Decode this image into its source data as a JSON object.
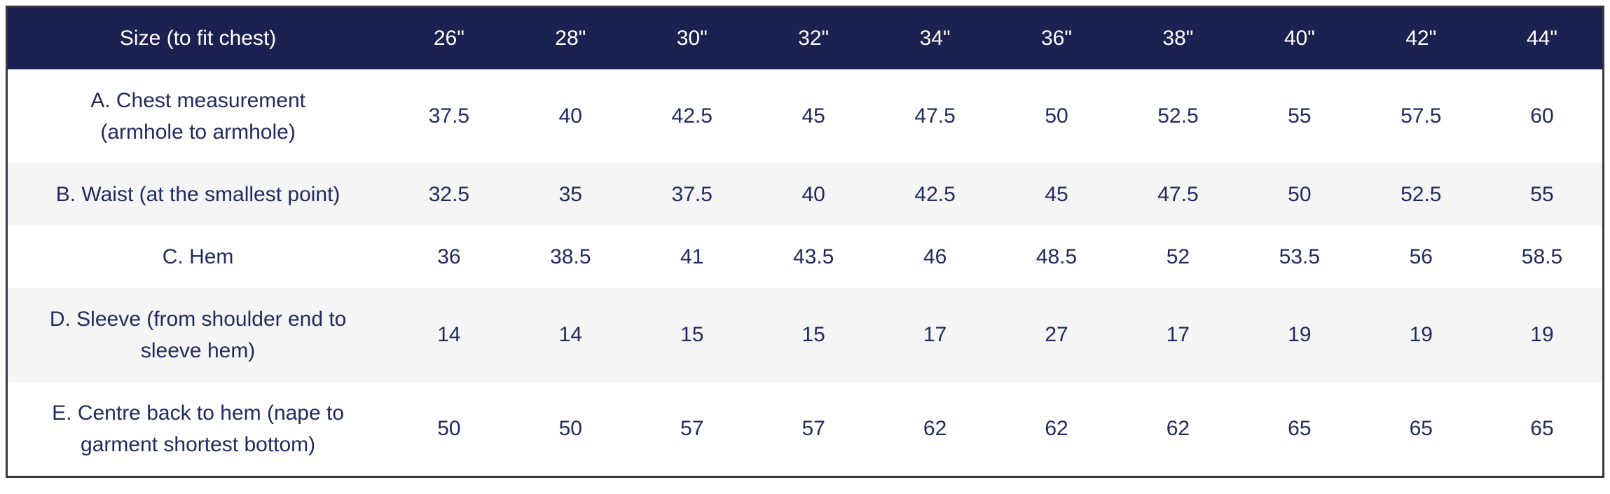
{
  "table": {
    "header": [
      "Size (to fit chest)",
      "26\"",
      "28\"",
      "30\"",
      "32\"",
      "34\"",
      "36\"",
      "38\"",
      "40\"",
      "42\"",
      "44\""
    ],
    "rows": [
      {
        "label": "A. Chest measurement\n(armhole to armhole)",
        "values": [
          "37.5",
          "40",
          "42.5",
          "45",
          "47.5",
          "50",
          "52.5",
          "55",
          "57.5",
          "60"
        ]
      },
      {
        "label": "B. Waist (at the smallest point)",
        "values": [
          "32.5",
          "35",
          "37.5",
          "40",
          "42.5",
          "45",
          "47.5",
          "50",
          "52.5",
          "55"
        ]
      },
      {
        "label": "C. Hem",
        "values": [
          "36",
          "38.5",
          "41",
          "43.5",
          "46",
          "48.5",
          "52",
          "53.5",
          "56",
          "58.5"
        ]
      },
      {
        "label": "D. Sleeve (from shoulder end to\nsleeve hem)",
        "values": [
          "14",
          "14",
          "15",
          "15",
          "17",
          "27",
          "17",
          "19",
          "19",
          "19"
        ]
      },
      {
        "label": "E. Centre back to hem (nape to\ngarment shortest bottom)",
        "values": [
          "50",
          "50",
          "57",
          "57",
          "62",
          "62",
          "62",
          "65",
          "65",
          "65"
        ]
      }
    ]
  },
  "colors": {
    "header_bg": "#1b2150",
    "header_text": "#ffffff",
    "body_text": "#232960",
    "stripe_row_bg": "#f5f5f6",
    "table_border": "#35363e"
  }
}
